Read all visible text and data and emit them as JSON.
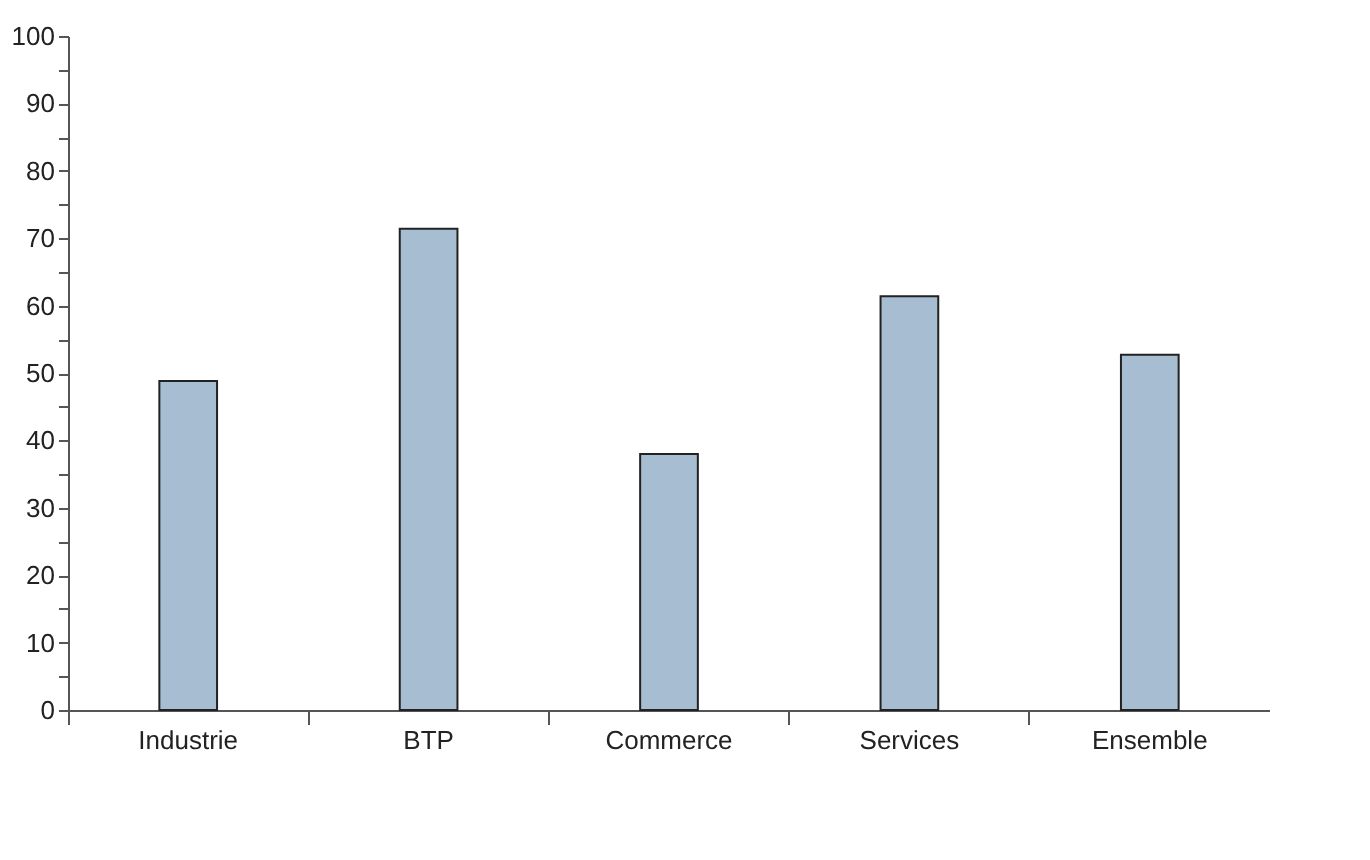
{
  "chart_data": {
    "type": "bar",
    "categories": [
      "Industrie",
      "BTP",
      "Commerce",
      "Services",
      "Ensemble"
    ],
    "values": [
      48.8,
      71.4,
      38.0,
      61.4,
      52.7
    ],
    "color": "#a7bdd1",
    "ylim": [
      0,
      100
    ],
    "yticks": [
      0,
      {
        "value": 5,
        "label": null
      },
      10,
      {
        "value": 15,
        "label": null
      },
      20,
      {
        "value": 25,
        "label": null
      },
      30,
      {
        "value": 35,
        "label": null
      },
      40,
      {
        "value": 45,
        "label": null
      },
      50,
      {
        "value": 55,
        "label": null
      },
      60,
      {
        "value": 65,
        "label": null
      },
      70,
      {
        "value": 75,
        "label": null
      },
      80,
      {
        "value": 85,
        "label": null
      },
      90,
      {
        "value": 95,
        "label": null
      },
      100
    ],
    "grid": false
  }
}
